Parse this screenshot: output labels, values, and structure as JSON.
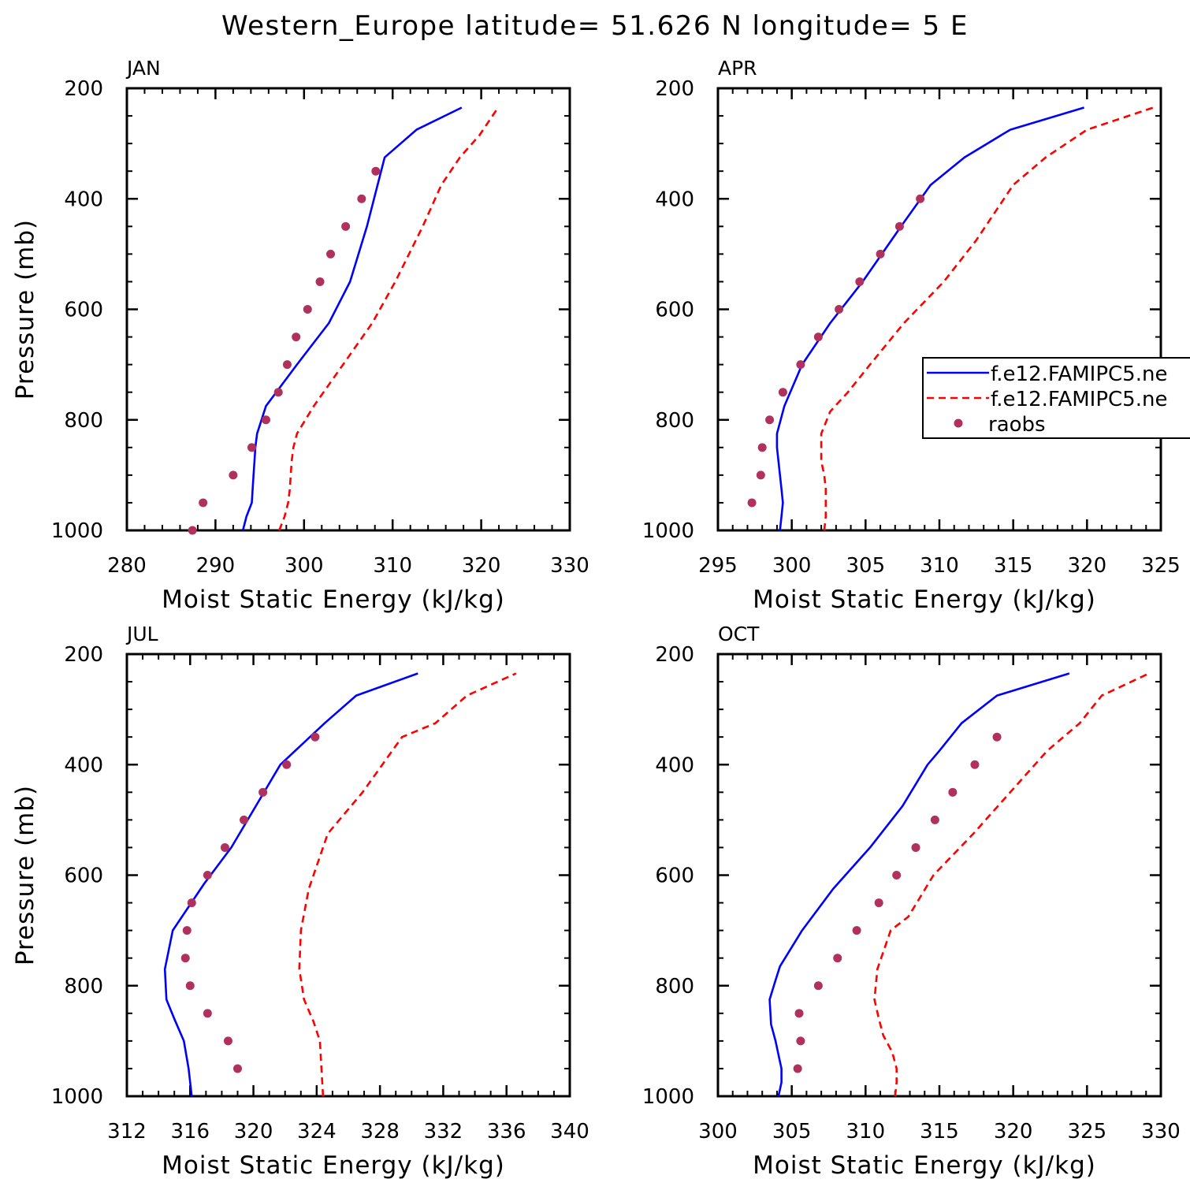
{
  "title": "Western_Europe  latitude= 51.626 N longitude= 5 E",
  "colors": {
    "model1": "#0000ff",
    "model2": "#ff0000",
    "raobs": "#b0315e",
    "axes": "#000000"
  },
  "legend": {
    "entries": [
      {
        "label": "f.e12.FAMIPC5.ne",
        "style": "solid",
        "color": "#0000ff"
      },
      {
        "label": "f.e12.FAMIPC5.ne",
        "style": "dashed",
        "color": "#ff0000"
      },
      {
        "label": "raobs",
        "style": "marker",
        "color": "#b0315e"
      }
    ]
  },
  "chart_data": [
    {
      "type": "line",
      "panel_label": "JAN",
      "xlabel": "Moist Static Energy (kJ/kg)",
      "ylabel": "Pressure (mb)",
      "xlim": [
        280,
        330
      ],
      "x_ticks": [
        280,
        290,
        300,
        310,
        320,
        330
      ],
      "x_minor_step": 2,
      "ylim": [
        1000,
        200
      ],
      "y_ticks": [
        200,
        400,
        600,
        800,
        1000
      ],
      "y_minor_step": 50,
      "series": [
        {
          "style": "solid",
          "color": "#0000ff",
          "points": [
            [
              293.1,
              1000
            ],
            [
              293.5,
              975
            ],
            [
              294.1,
              950
            ],
            [
              294.2,
              925
            ],
            [
              294.3,
              900
            ],
            [
              294.4,
              875
            ],
            [
              294.5,
              850
            ],
            [
              294.7,
              825
            ],
            [
              295.7,
              775
            ],
            [
              299.2,
              700
            ],
            [
              302.8,
              625
            ],
            [
              305.2,
              550
            ],
            [
              307.1,
              450
            ],
            [
              309.1,
              325
            ],
            [
              312.7,
              275
            ],
            [
              317.8,
              235
            ]
          ]
        },
        {
          "style": "dashed",
          "color": "#ff0000",
          "points": [
            [
              297.2,
              1000
            ],
            [
              297.8,
              975
            ],
            [
              298.2,
              950
            ],
            [
              298.4,
              925
            ],
            [
              298.5,
              900
            ],
            [
              298.6,
              875
            ],
            [
              298.8,
              850
            ],
            [
              299.2,
              825
            ],
            [
              301.1,
              775
            ],
            [
              304.4,
              700
            ],
            [
              307.7,
              625
            ],
            [
              310.3,
              550
            ],
            [
              313.4,
              450
            ],
            [
              315.5,
              375
            ],
            [
              317.6,
              325
            ],
            [
              319.8,
              285
            ],
            [
              321.9,
              235
            ]
          ]
        },
        {
          "style": "marker",
          "color": "#b0315e",
          "name": "raobs",
          "points": [
            [
              287.4,
              1000
            ],
            [
              288.6,
              950
            ],
            [
              292.0,
              900
            ],
            [
              294.1,
              850
            ],
            [
              295.7,
              800
            ],
            [
              297.1,
              750
            ],
            [
              298.1,
              700
            ],
            [
              299.1,
              650
            ],
            [
              300.4,
              600
            ],
            [
              301.8,
              550
            ],
            [
              303.0,
              500
            ],
            [
              304.7,
              450
            ],
            [
              306.5,
              400
            ],
            [
              308.1,
              350
            ]
          ]
        }
      ]
    },
    {
      "type": "line",
      "panel_label": "APR",
      "xlabel": "Moist Static Energy (kJ/kg)",
      "ylabel": "",
      "xlim": [
        295,
        325
      ],
      "x_ticks": [
        295,
        300,
        305,
        310,
        315,
        320,
        325
      ],
      "x_minor_step": 1,
      "ylim": [
        1000,
        200
      ],
      "y_ticks": [
        200,
        400,
        600,
        800,
        1000
      ],
      "y_minor_step": 50,
      "series": [
        {
          "style": "solid",
          "color": "#0000ff",
          "points": [
            [
              299.2,
              1000
            ],
            [
              299.3,
              975
            ],
            [
              299.4,
              950
            ],
            [
              299.3,
              925
            ],
            [
              299.2,
              900
            ],
            [
              299.1,
              875
            ],
            [
              299.0,
              850
            ],
            [
              299.0,
              825
            ],
            [
              299.5,
              775
            ],
            [
              300.7,
              700
            ],
            [
              302.6,
              625
            ],
            [
              304.8,
              550
            ],
            [
              307.4,
              450
            ],
            [
              309.4,
              375
            ],
            [
              311.7,
              325
            ],
            [
              314.8,
              275
            ],
            [
              319.8,
              235
            ]
          ]
        },
        {
          "style": "dashed",
          "color": "#ff0000",
          "points": [
            [
              302.2,
              1000
            ],
            [
              302.3,
              975
            ],
            [
              302.3,
              950
            ],
            [
              302.3,
              925
            ],
            [
              302.2,
              900
            ],
            [
              302.0,
              875
            ],
            [
              302.0,
              850
            ],
            [
              302.0,
              825
            ],
            [
              302.6,
              785
            ],
            [
              303.8,
              750
            ],
            [
              305.3,
              700
            ],
            [
              307.6,
              625
            ],
            [
              310.3,
              550
            ],
            [
              312.5,
              475
            ],
            [
              315.0,
              375
            ],
            [
              317.2,
              325
            ],
            [
              320.0,
              275
            ],
            [
              324.5,
              235
            ]
          ]
        },
        {
          "style": "marker",
          "color": "#b0315e",
          "name": "raobs",
          "points": [
            [
              297.3,
              950
            ],
            [
              297.9,
              900
            ],
            [
              298.0,
              850
            ],
            [
              298.5,
              800
            ],
            [
              299.4,
              750
            ],
            [
              300.6,
              700
            ],
            [
              301.8,
              650
            ],
            [
              303.2,
              600
            ],
            [
              304.6,
              550
            ],
            [
              306.0,
              500
            ],
            [
              307.3,
              450
            ],
            [
              308.7,
              400
            ]
          ]
        }
      ]
    },
    {
      "type": "line",
      "panel_label": "JUL",
      "xlabel": "Moist Static Energy (kJ/kg)",
      "ylabel": "Pressure (mb)",
      "xlim": [
        312,
        340
      ],
      "x_ticks": [
        312,
        316,
        320,
        324,
        328,
        332,
        336,
        340
      ],
      "x_minor_step": 1,
      "ylim": [
        1000,
        200
      ],
      "y_ticks": [
        200,
        400,
        600,
        800,
        1000
      ],
      "y_minor_step": 50,
      "series": [
        {
          "style": "solid",
          "color": "#0000ff",
          "points": [
            [
              316.1,
              1000
            ],
            [
              315.9,
              950
            ],
            [
              315.6,
              900
            ],
            [
              315.0,
              860
            ],
            [
              314.5,
              825
            ],
            [
              314.4,
              770
            ],
            [
              314.9,
              700
            ],
            [
              316.9,
              615
            ],
            [
              318.6,
              550
            ],
            [
              321.7,
              400
            ],
            [
              324.5,
              325
            ],
            [
              326.5,
              275
            ],
            [
              330.4,
              235
            ]
          ]
        },
        {
          "style": "dashed",
          "color": "#ff0000",
          "points": [
            [
              324.4,
              1000
            ],
            [
              324.3,
              950
            ],
            [
              324.2,
              900
            ],
            [
              323.8,
              865
            ],
            [
              323.2,
              825
            ],
            [
              322.9,
              770
            ],
            [
              323.0,
              700
            ],
            [
              323.5,
              625
            ],
            [
              324.7,
              525
            ],
            [
              326.9,
              450
            ],
            [
              329.4,
              350
            ],
            [
              331.5,
              325
            ],
            [
              333.5,
              275
            ],
            [
              336.6,
              235
            ]
          ]
        },
        {
          "style": "marker",
          "color": "#b0315e",
          "name": "raobs",
          "points": [
            [
              319.0,
              950
            ],
            [
              318.4,
              900
            ],
            [
              317.1,
              850
            ],
            [
              316.0,
              800
            ],
            [
              315.7,
              750
            ],
            [
              315.8,
              700
            ],
            [
              316.1,
              650
            ],
            [
              317.1,
              600
            ],
            [
              318.2,
              550
            ],
            [
              319.4,
              500
            ],
            [
              320.6,
              450
            ],
            [
              322.1,
              400
            ],
            [
              323.9,
              350
            ]
          ]
        }
      ]
    },
    {
      "type": "line",
      "panel_label": "OCT",
      "xlabel": "Moist Static Energy (kJ/kg)",
      "ylabel": "",
      "xlim": [
        300,
        330
      ],
      "x_ticks": [
        300,
        305,
        310,
        315,
        320,
        325,
        330
      ],
      "x_minor_step": 1,
      "ylim": [
        1000,
        200
      ],
      "y_ticks": [
        200,
        400,
        600,
        800,
        1000
      ],
      "y_minor_step": 50,
      "series": [
        {
          "style": "solid",
          "color": "#0000ff",
          "points": [
            [
              304.1,
              1000
            ],
            [
              304.3,
              975
            ],
            [
              304.3,
              950
            ],
            [
              304.1,
              925
            ],
            [
              303.9,
              900
            ],
            [
              303.6,
              870
            ],
            [
              303.5,
              825
            ],
            [
              303.9,
              790
            ],
            [
              304.2,
              765
            ],
            [
              305.7,
              700
            ],
            [
              307.8,
              625
            ],
            [
              310.3,
              550
            ],
            [
              312.5,
              475
            ],
            [
              314.2,
              400
            ],
            [
              315.0,
              375
            ],
            [
              316.5,
              325
            ],
            [
              318.9,
              275
            ],
            [
              323.8,
              235
            ]
          ]
        },
        {
          "style": "dashed",
          "color": "#ff0000",
          "points": [
            [
              312.0,
              1000
            ],
            [
              312.1,
              975
            ],
            [
              312.1,
              950
            ],
            [
              311.8,
              920
            ],
            [
              311.2,
              890
            ],
            [
              310.9,
              860
            ],
            [
              310.6,
              825
            ],
            [
              310.8,
              770
            ],
            [
              311.7,
              700
            ],
            [
              312.9,
              675
            ],
            [
              314.6,
              600
            ],
            [
              317.3,
              525
            ],
            [
              319.8,
              450
            ],
            [
              322.3,
              375
            ],
            [
              324.5,
              325
            ],
            [
              326.0,
              275
            ],
            [
              329.2,
              235
            ]
          ]
        },
        {
          "style": "marker",
          "color": "#b0315e",
          "name": "raobs",
          "points": [
            [
              305.4,
              950
            ],
            [
              305.6,
              900
            ],
            [
              305.5,
              850
            ],
            [
              306.8,
              800
            ],
            [
              308.1,
              750
            ],
            [
              309.4,
              700
            ],
            [
              310.9,
              650
            ],
            [
              312.1,
              600
            ],
            [
              313.4,
              550
            ],
            [
              314.7,
              500
            ],
            [
              315.9,
              450
            ],
            [
              317.4,
              400
            ],
            [
              318.9,
              350
            ]
          ]
        }
      ]
    }
  ]
}
